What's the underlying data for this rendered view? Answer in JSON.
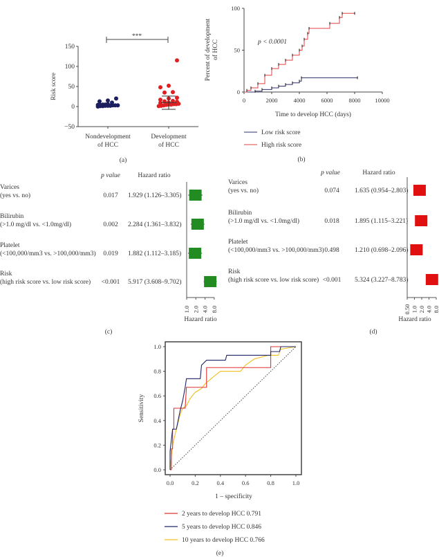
{
  "chart_data": [
    {
      "panel": "(a)",
      "type": "scatter",
      "ylabel": "Risk score",
      "ylim": [
        -50,
        150
      ],
      "yticks": [
        "150",
        "100",
        "50",
        "0",
        "−50"
      ],
      "categories": [
        [
          "Nondevelopment",
          "of HCC"
        ],
        [
          "Development",
          "of HCC"
        ]
      ],
      "significance": "***",
      "colors": [
        "#1b1f5e",
        "#e02020"
      ],
      "series": [
        {
          "values": [
            0,
            1,
            1,
            2,
            2,
            2,
            3,
            3,
            3,
            4,
            4,
            5,
            5,
            6,
            10,
            13,
            15,
            20
          ]
        },
        {
          "values": [
            1,
            2,
            3,
            4,
            5,
            5,
            6,
            6,
            7,
            8,
            9,
            10,
            12,
            13,
            14,
            17,
            20,
            22,
            35,
            36,
            48,
            52,
            115
          ],
          "mean": 10,
          "sd_upper": 26,
          "sd_lower": -7
        }
      ]
    },
    {
      "panel": "(b)",
      "type": "line",
      "xlabel": "Time to develop HCC (days)",
      "ylabel": [
        "Percent of development",
        "of HCC"
      ],
      "xlim": [
        0,
        10000
      ],
      "ylim": [
        0,
        100
      ],
      "xticks": [
        "0",
        "2000",
        "4000",
        "6000",
        "8000",
        "10000"
      ],
      "yticks": [
        "0",
        "50",
        "100"
      ],
      "annotation": "p < 0.0001",
      "series": [
        {
          "name": "Low risk score",
          "color": "#2b2f6e",
          "x": [
            0,
            800,
            1300,
            2000,
            2500,
            3000,
            3500,
            4000,
            4150,
            8200
          ],
          "y": [
            0,
            1,
            3,
            5,
            7,
            9,
            11,
            13,
            17,
            17
          ]
        },
        {
          "name": "High risk score",
          "color": "#e04040",
          "x": [
            0,
            200,
            500,
            1000,
            1500,
            2000,
            2500,
            3000,
            3500,
            4000,
            4200,
            4350,
            4600,
            4700,
            6200,
            6900,
            7100,
            8000
          ],
          "y": [
            0,
            2,
            5,
            10,
            20,
            28,
            33,
            38,
            44,
            50,
            55,
            63,
            70,
            76,
            82,
            89,
            94,
            94
          ]
        }
      ]
    },
    {
      "panel": "(c)",
      "type": "table",
      "headers": [
        "p value",
        "Hazard ratio"
      ],
      "xlabel": "Hazard ratio",
      "xticks": [
        "1.0",
        "2.0",
        "4.0",
        "8.0"
      ],
      "color": "#228b22",
      "rows": [
        {
          "label": [
            "Varices",
            "(yes vs. no)"
          ],
          "p": "0.017",
          "hr_text": "1.929 (1.126–3.305)",
          "hr": 1.929,
          "lo": 1.126,
          "hi": 3.305
        },
        {
          "label": [
            "Bilirubin",
            "(>1.0 mg/dl vs. <1.0mg/dl)"
          ],
          "p": "0.002",
          "hr_text": "2.284 (1.361–3.832)",
          "hr": 2.284,
          "lo": 1.361,
          "hi": 3.832
        },
        {
          "label": [
            "Platelet",
            "(<100,000/mm3 vs. >100,000/mm3)"
          ],
          "p": "0.019",
          "hr_text": "1.882 (1.112–3.185)",
          "hr": 1.882,
          "lo": 1.112,
          "hi": 3.185
        },
        {
          "label": [
            "Risk",
            "(high risk score vs. low risk score)"
          ],
          "p": "<0.001",
          "hr_text": "5.917 (3.608–9.702)",
          "hr": 5.917,
          "lo": 3.608,
          "hi": 9.702
        }
      ]
    },
    {
      "panel": "(d)",
      "type": "table",
      "headers": [
        "p value",
        "Hazard ratio"
      ],
      "xlabel": "Hazard ratio",
      "xticks": [
        "0.50",
        "1.0",
        "2.0",
        "4.0",
        "8.0"
      ],
      "color": "#e01010",
      "rows": [
        {
          "label": [
            "Varices",
            "(yes vs. no)"
          ],
          "p": "0.074",
          "hr_text": "1.635 (0.954–2.803)",
          "hr": 1.635,
          "lo": 0.954,
          "hi": 2.803
        },
        {
          "label": [
            "Bilirubin",
            "(>1.0 mg/dl vs. <1.0mg/dl)"
          ],
          "p": "0.018",
          "hr_text": "1.895 (1.115–3.221)",
          "hr": 1.895,
          "lo": 1.115,
          "hi": 3.221
        },
        {
          "label": [
            "Platelet",
            "(<100,000/mm3 vs. >100,000/mm3)"
          ],
          "p": "0.498",
          "hr_text": "1.210 (0.698–2.096)",
          "hr": 1.21,
          "lo": 0.698,
          "hi": 2.096
        },
        {
          "label": [
            "Risk",
            "(high risk score vs. low risk score)"
          ],
          "p": "<0.001",
          "hr_text": "5.324 (3.227–8.783)",
          "hr": 5.324,
          "lo": 3.227,
          "hi": 8.783
        }
      ]
    },
    {
      "panel": "(e)",
      "type": "line",
      "xlabel": "1 – specificity",
      "ylabel": "Sensitivity",
      "xlim": [
        0,
        1
      ],
      "ylim": [
        0,
        1
      ],
      "xticks": [
        "0.0",
        "0.2",
        "0.4",
        "0.6",
        "0.8",
        "1.0"
      ],
      "yticks": [
        "0.0",
        "0.2",
        "0.4",
        "0.6",
        "0.8",
        "1.0"
      ],
      "series": [
        {
          "name": "2 years to develop HCC 0.791",
          "color": "#e03030",
          "x": [
            0,
            0.01,
            0.01,
            0.02,
            0.02,
            0.03,
            0.03,
            0.12,
            0.13,
            0.29,
            0.29,
            0.8,
            0.8,
            1
          ],
          "y": [
            0,
            0,
            0.17,
            0.17,
            0.33,
            0.33,
            0.5,
            0.5,
            0.67,
            0.67,
            0.83,
            0.83,
            1,
            1
          ]
        },
        {
          "name": "5 years to develop HCC 0.846",
          "color": "#1f2466",
          "x": [
            0,
            0,
            0.02,
            0.05,
            0.08,
            0.1,
            0.12,
            0.13,
            0.24,
            0.25,
            0.29,
            0.44,
            0.45,
            0.8,
            0.8,
            0.87,
            0.88,
            1
          ],
          "y": [
            0,
            0.15,
            0.33,
            0.33,
            0.48,
            0.56,
            0.67,
            0.74,
            0.74,
            0.85,
            0.89,
            0.89,
            0.93,
            0.93,
            0.96,
            0.96,
            1,
            1
          ]
        },
        {
          "name": "10 years to develop HCC 0.766",
          "color": "#f0c020",
          "x": [
            0,
            0.02,
            0.05,
            0.08,
            0.1,
            0.13,
            0.16,
            0.2,
            0.25,
            0.28,
            0.35,
            0.4,
            0.56,
            0.6,
            0.67,
            0.78,
            0.86,
            0.88,
            1
          ],
          "y": [
            0,
            0.2,
            0.33,
            0.45,
            0.5,
            0.52,
            0.58,
            0.63,
            0.66,
            0.7,
            0.76,
            0.8,
            0.8,
            0.85,
            0.9,
            0.93,
            0.93,
            0.98,
            1
          ]
        }
      ]
    }
  ]
}
